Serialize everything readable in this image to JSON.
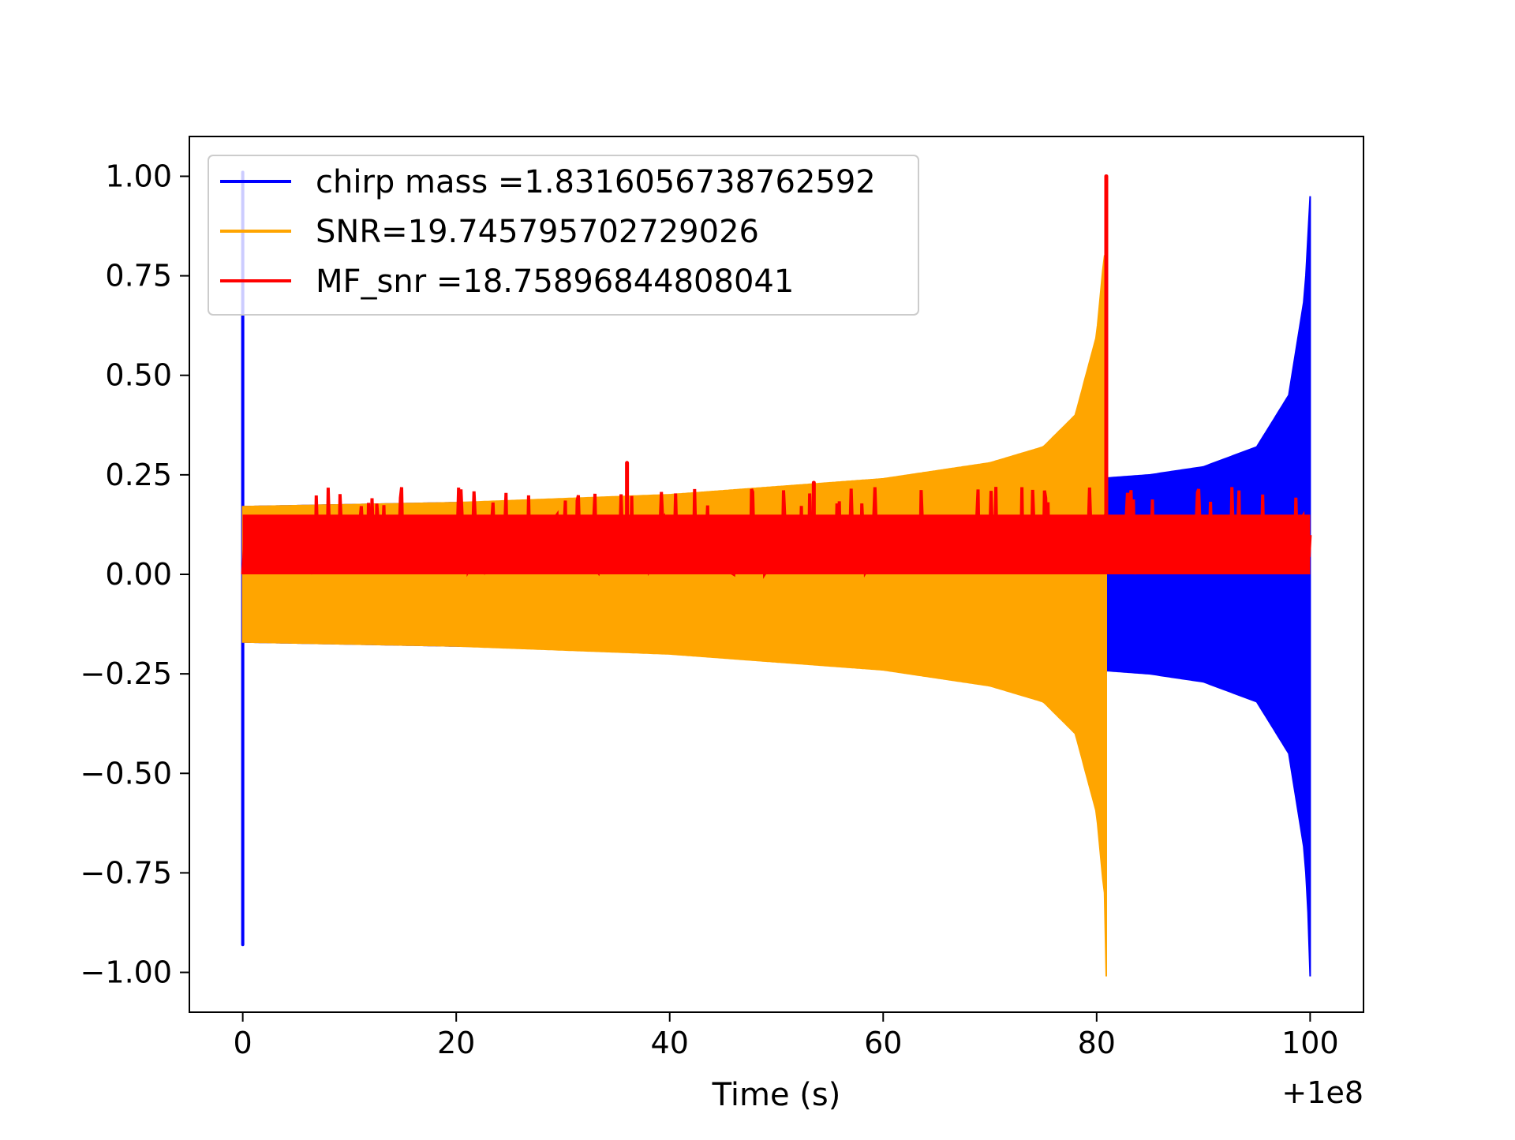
{
  "chart_data": {
    "type": "line",
    "title": "",
    "xlabel": "Time (s)",
    "ylabel": "",
    "x_offset_label": "+1e8",
    "xlim": [
      -5,
      105
    ],
    "ylim": [
      -1.1,
      1.1
    ],
    "xticks": [
      0,
      20,
      40,
      60,
      80,
      100
    ],
    "xtick_labels": [
      "0",
      "20",
      "40",
      "60",
      "80",
      "100"
    ],
    "yticks": [
      1.0,
      0.75,
      0.5,
      0.25,
      0.0,
      -0.25,
      -0.5,
      -0.75,
      -1.0
    ],
    "ytick_labels": [
      "1.00",
      "0.75",
      "0.50",
      "0.25",
      "0.00",
      "−0.25",
      "−0.50",
      "−0.75",
      "−1.00"
    ],
    "grid": false,
    "legend_position": "top-left",
    "series": [
      {
        "name": "chirp mass =1.8316056738762592",
        "color": "#0000ff",
        "kind": "chirp",
        "x_start": 0,
        "x_end": 100,
        "envelope": [
          [
            0.0,
            0.17
          ],
          [
            20.0,
            0.18
          ],
          [
            40.0,
            0.19
          ],
          [
            60.0,
            0.21
          ],
          [
            80.0,
            0.24
          ],
          [
            85.0,
            0.25
          ],
          [
            90.0,
            0.27
          ],
          [
            95.0,
            0.32
          ],
          [
            98.0,
            0.45
          ],
          [
            99.5,
            0.7
          ],
          [
            100.0,
            0.95
          ]
        ],
        "min_at_merger": -1.01,
        "start_spike": [
          0.0,
          1.01,
          -0.93
        ]
      },
      {
        "name": "SNR=19.745795702729026",
        "color": "#ffa500",
        "kind": "chirp",
        "x_start": 0,
        "x_end": 80.9,
        "envelope": [
          [
            0.0,
            0.17
          ],
          [
            20.0,
            0.18
          ],
          [
            40.0,
            0.2
          ],
          [
            60.0,
            0.24
          ],
          [
            70.0,
            0.28
          ],
          [
            75.0,
            0.32
          ],
          [
            78.0,
            0.4
          ],
          [
            80.0,
            0.6
          ],
          [
            80.7,
            0.8
          ],
          [
            80.9,
            0.8
          ]
        ],
        "min_at_merger": -1.01
      },
      {
        "name": "MF_snr =18.75896844808041",
        "color": "#ff0000",
        "kind": "noise",
        "x_start": 0,
        "x_end": 100,
        "band": [
          0.0,
          0.15
        ],
        "spikes": [
          [
            36.0,
            0.28
          ],
          [
            53.5,
            0.23
          ],
          [
            80.9,
            1.0
          ]
        ]
      }
    ]
  }
}
